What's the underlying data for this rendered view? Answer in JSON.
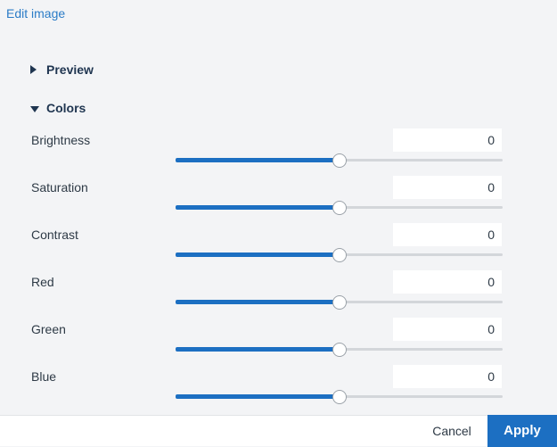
{
  "header": {
    "edit_image_label": "Edit image"
  },
  "sections": {
    "preview": {
      "label": "Preview",
      "expanded": false
    },
    "colors": {
      "label": "Colors",
      "expanded": true
    }
  },
  "colors": {
    "brightness": {
      "label": "Brightness",
      "value": "0",
      "slider_fraction": 0.5
    },
    "saturation": {
      "label": "Saturation",
      "value": "0",
      "slider_fraction": 0.5
    },
    "contrast": {
      "label": "Contrast",
      "value": "0",
      "slider_fraction": 0.5
    },
    "red": {
      "label": "Red",
      "value": "0",
      "slider_fraction": 0.5
    },
    "green": {
      "label": "Green",
      "value": "0",
      "slider_fraction": 0.5
    },
    "blue": {
      "label": "Blue",
      "value": "0",
      "slider_fraction": 0.5
    }
  },
  "footer": {
    "cancel_label": "Cancel",
    "apply_label": "Apply"
  },
  "theme": {
    "accent": "#1c6fc2",
    "link": "#2b7cc7",
    "background": "#f3f4f6"
  }
}
